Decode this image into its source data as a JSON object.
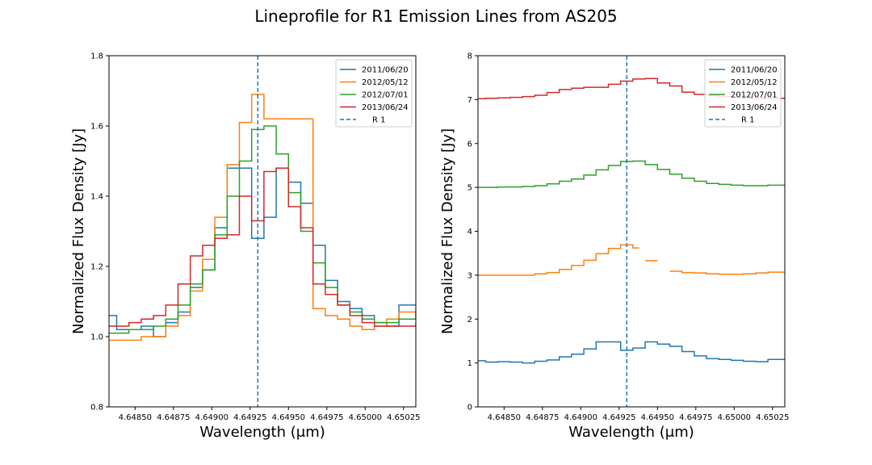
{
  "figure_title": "Lineprofile for R1 Emission Lines from AS205",
  "chart_data": [
    {
      "type": "line",
      "step": true,
      "xlabel": "Wavelength (μm)",
      "ylabel": "Normalized Flux Density [Jy]",
      "xlim": [
        4.64833,
        4.65033
      ],
      "ylim": [
        0.8,
        1.8
      ],
      "xticks": [
        4.6485,
        4.64875,
        4.649,
        4.64925,
        4.6495,
        4.64975,
        4.65,
        4.65025
      ],
      "xtick_labels": [
        "4.64850",
        "4.64875",
        "4.64900",
        "4.64925",
        "4.64950",
        "4.64975",
        "4.65000",
        "4.65025"
      ],
      "yticks": [
        0.8,
        1.0,
        1.2,
        1.4,
        1.6,
        1.8
      ],
      "ytick_labels": [
        "0.8",
        "1.0",
        "1.2",
        "1.4",
        "1.6",
        "1.8"
      ],
      "grid": false,
      "legend_position": "top-right",
      "vline": {
        "x": 4.6493,
        "label": "R  1",
        "color": "#1f77b4"
      },
      "series": [
        {
          "name": "2011/06/20",
          "color": "#1f77b4",
          "x": [
            4.64833,
            4.64838,
            4.64846,
            4.64854,
            4.64862,
            4.6487,
            4.64878,
            4.64886,
            4.64894,
            4.64902,
            4.6491,
            4.64918,
            4.64926,
            4.64934,
            4.64942,
            4.6495,
            4.64958,
            4.64966,
            4.64974,
            4.64982,
            4.6499,
            4.64998,
            4.65006,
            4.65014,
            4.65022,
            4.65033
          ],
          "y": [
            1.06,
            1.02,
            1.02,
            1.03,
            1.0,
            1.04,
            1.07,
            1.14,
            1.19,
            1.31,
            1.48,
            1.48,
            1.28,
            1.34,
            1.48,
            1.44,
            1.38,
            1.26,
            1.16,
            1.1,
            1.08,
            1.06,
            1.04,
            1.03,
            1.09,
            1.09
          ]
        },
        {
          "name": "2012/05/12",
          "color": "#ff7f0e",
          "x": [
            4.64833,
            4.64846,
            4.64854,
            4.64862,
            4.6487,
            4.64878,
            4.64886,
            4.64894,
            4.64902,
            4.6491,
            4.64918,
            4.64926,
            4.64934,
            4.64966,
            4.64974,
            4.64982,
            4.6499,
            4.64998,
            4.65006,
            4.65014,
            4.65022,
            4.65033
          ],
          "y": [
            0.99,
            0.99,
            1.0,
            1.0,
            1.03,
            1.06,
            1.13,
            1.22,
            1.34,
            1.49,
            1.61,
            1.69,
            1.62,
            1.08,
            1.06,
            1.05,
            1.03,
            1.02,
            1.03,
            1.05,
            1.07,
            1.08
          ]
        },
        {
          "name": "2012/07/01",
          "color": "#2ca02c",
          "x": [
            4.64833,
            4.64838,
            4.64846,
            4.64854,
            4.64862,
            4.6487,
            4.64878,
            4.64886,
            4.64894,
            4.64902,
            4.6491,
            4.64918,
            4.64926,
            4.64934,
            4.64942,
            4.6495,
            4.64958,
            4.64966,
            4.64974,
            4.64982,
            4.6499,
            4.64998,
            4.65006,
            4.65014,
            4.65022,
            4.65033
          ],
          "y": [
            1.01,
            1.01,
            1.02,
            1.02,
            1.03,
            1.05,
            1.09,
            1.15,
            1.19,
            1.29,
            1.4,
            1.5,
            1.59,
            1.6,
            1.52,
            1.41,
            1.3,
            1.21,
            1.14,
            1.09,
            1.07,
            1.05,
            1.04,
            1.04,
            1.05,
            1.07
          ]
        },
        {
          "name": "2013/06/24",
          "color": "#d62728",
          "x": [
            4.64833,
            4.64838,
            4.64846,
            4.64854,
            4.64862,
            4.6487,
            4.64878,
            4.64886,
            4.64894,
            4.64902,
            4.6491,
            4.64918,
            4.64926,
            4.64934,
            4.64942,
            4.6495,
            4.64958,
            4.64966,
            4.64974,
            4.64982,
            4.6499,
            4.64998,
            4.65006,
            4.65014,
            4.65022,
            4.65033
          ],
          "y": [
            1.03,
            1.03,
            1.04,
            1.05,
            1.06,
            1.09,
            1.15,
            1.23,
            1.26,
            1.28,
            1.29,
            1.4,
            1.33,
            1.47,
            1.48,
            1.37,
            1.31,
            1.15,
            1.12,
            1.09,
            1.06,
            1.04,
            1.03,
            1.03,
            1.03,
            1.04
          ]
        }
      ]
    },
    {
      "type": "line",
      "step": true,
      "xlabel": "Wavelength (μm)",
      "ylabel": "Normalized Flux Density [Jy]",
      "xlim": [
        4.64833,
        4.65033
      ],
      "ylim": [
        0,
        8
      ],
      "xticks": [
        4.6485,
        4.64875,
        4.649,
        4.64925,
        4.6495,
        4.64975,
        4.65,
        4.65025
      ],
      "xtick_labels": [
        "4.64850",
        "4.64875",
        "4.64900",
        "4.64925",
        "4.64950",
        "4.64975",
        "4.65000",
        "4.65025"
      ],
      "yticks": [
        0,
        1,
        2,
        3,
        4,
        5,
        6,
        7,
        8
      ],
      "ytick_labels": [
        "0",
        "1",
        "2",
        "3",
        "4",
        "5",
        "6",
        "7",
        "8"
      ],
      "grid": false,
      "legend_position": "top-right",
      "vline": {
        "x": 4.6493,
        "label": "R  1",
        "color": "#1f77b4"
      },
      "series": [
        {
          "name": "2011/06/20",
          "color": "#1f77b4",
          "x": [
            4.64833,
            4.64838,
            4.64846,
            4.64854,
            4.64862,
            4.6487,
            4.64878,
            4.64886,
            4.64894,
            4.64902,
            4.6491,
            4.64918,
            4.64926,
            4.64934,
            4.64942,
            4.6495,
            4.64958,
            4.64966,
            4.64974,
            4.64982,
            4.6499,
            4.64998,
            4.65006,
            4.65014,
            4.65022,
            4.65033
          ],
          "y": [
            1.05,
            1.02,
            1.03,
            1.02,
            1.0,
            1.04,
            1.07,
            1.14,
            1.2,
            1.32,
            1.48,
            1.48,
            1.29,
            1.34,
            1.48,
            1.43,
            1.38,
            1.26,
            1.16,
            1.1,
            1.08,
            1.06,
            1.04,
            1.03,
            1.08,
            1.09
          ]
        },
        {
          "name": "2012/05/12",
          "color": "#ff7f0e",
          "segments": [
            {
              "x": [
                4.64833,
                4.64846,
                4.64854,
                4.64862,
                4.6487,
                4.64878,
                4.64886,
                4.64894,
                4.64902,
                4.6491,
                4.64918,
                4.64926,
                4.64934,
                4.64938
              ],
              "y": [
                3.0,
                3.0,
                3.0,
                3.0,
                3.03,
                3.06,
                3.13,
                3.22,
                3.34,
                3.49,
                3.61,
                3.69,
                3.62,
                3.62
              ]
            },
            {
              "x": [
                4.64942,
                4.6495
              ],
              "y": [
                3.33,
                3.33
              ]
            },
            {
              "x": [
                4.64958,
                4.64966,
                4.64974,
                4.64982,
                4.6499,
                4.64998,
                4.65006,
                4.65014,
                4.65022,
                4.65033
              ],
              "y": [
                3.09,
                3.06,
                3.05,
                3.03,
                3.02,
                3.02,
                3.03,
                3.05,
                3.07,
                3.08
              ]
            }
          ]
        },
        {
          "name": "2012/07/01",
          "color": "#2ca02c",
          "x": [
            4.64833,
            4.64838,
            4.64846,
            4.64854,
            4.64862,
            4.6487,
            4.64878,
            4.64886,
            4.64894,
            4.64902,
            4.6491,
            4.64918,
            4.64926,
            4.64934,
            4.64942,
            4.6495,
            4.64958,
            4.64966,
            4.64974,
            4.64982,
            4.6499,
            4.64998,
            4.65006,
            4.65014,
            4.65022,
            4.65033
          ],
          "y": [
            5.0,
            5.0,
            5.01,
            5.01,
            5.02,
            5.04,
            5.08,
            5.14,
            5.19,
            5.28,
            5.4,
            5.5,
            5.59,
            5.6,
            5.52,
            5.41,
            5.3,
            5.21,
            5.14,
            5.09,
            5.07,
            5.05,
            5.04,
            5.04,
            5.05,
            5.07
          ]
        },
        {
          "name": "2013/06/24",
          "color": "#d62728",
          "x": [
            4.64833,
            4.64838,
            4.64846,
            4.64854,
            4.64862,
            4.6487,
            4.64878,
            4.64886,
            4.64894,
            4.64902,
            4.6491,
            4.64918,
            4.64926,
            4.64934,
            4.64942,
            4.6495,
            4.64958,
            4.64966,
            4.64974,
            4.64982,
            4.6499,
            4.64998,
            4.65006,
            4.65014,
            4.65022,
            4.65033
          ],
          "y": [
            7.02,
            7.03,
            7.04,
            7.05,
            7.07,
            7.1,
            7.16,
            7.23,
            7.26,
            7.28,
            7.28,
            7.35,
            7.42,
            7.47,
            7.48,
            7.38,
            7.31,
            7.17,
            7.12,
            7.09,
            7.07,
            7.05,
            7.04,
            7.03,
            7.03,
            7.04
          ]
        }
      ]
    }
  ]
}
